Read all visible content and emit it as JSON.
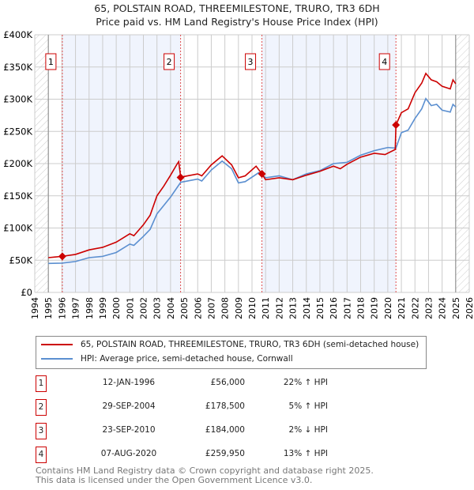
{
  "title": "65, POLSTAIN ROAD, THREEMILESTONE, TRURO, TR3 6DH",
  "subtitle": "Price paid vs. HM Land Registry's House Price Index (HPI)",
  "chart_data": {
    "type": "line",
    "xlim": [
      1994,
      2026
    ],
    "ylim": [
      0,
      400000
    ],
    "x_ticks": [
      "1994",
      "1995",
      "1996",
      "1997",
      "1998",
      "1999",
      "2000",
      "2001",
      "2002",
      "2003",
      "2004",
      "2005",
      "2006",
      "2007",
      "2008",
      "2009",
      "2010",
      "2011",
      "2012",
      "2013",
      "2014",
      "2015",
      "2016",
      "2017",
      "2018",
      "2019",
      "2020",
      "2021",
      "2022",
      "2023",
      "2024",
      "2025",
      "2026"
    ],
    "y_ticks": [
      {
        "v": 0,
        "label": "£0"
      },
      {
        "v": 50000,
        "label": "£50K"
      },
      {
        "v": 100000,
        "label": "£100K"
      },
      {
        "v": 150000,
        "label": "£150K"
      },
      {
        "v": 200000,
        "label": "£200K"
      },
      {
        "v": 250000,
        "label": "£250K"
      },
      {
        "v": 300000,
        "label": "£300K"
      },
      {
        "v": 350000,
        "label": "£350K"
      },
      {
        "v": 400000,
        "label": "£400K"
      }
    ],
    "data_range": [
      1995,
      2025
    ],
    "series": [
      {
        "name": "65, POLSTAIN ROAD, THREEMILESTONE, TRURO, TR3 6DH (semi-detached house)",
        "color": "#cc0000",
        "x": [
          1995,
          1995.5,
          1996,
          1997,
          1998,
          1999,
          2000,
          2001,
          2001.3,
          2002,
          2002.5,
          2003,
          2003.5,
          2004,
          2004.5,
          2004.6,
          2004.75,
          2005,
          2006,
          2006.3,
          2007,
          2007.8,
          2008.5,
          2009,
          2009.5,
          2010.3,
          2010.73,
          2011,
          2012,
          2013,
          2014,
          2015,
          2016,
          2016.5,
          2017,
          2018,
          2019,
          2019.8,
          2020.55,
          2020.6,
          2021,
          2021.5,
          2022,
          2022.5,
          2022.8,
          2023.2,
          2023.6,
          2024,
          2024.6,
          2024.8,
          2025
        ],
        "y": [
          54000,
          55000,
          56000,
          59000,
          66000,
          70000,
          78000,
          91000,
          88000,
          105000,
          120000,
          150000,
          165000,
          182000,
          200000,
          203000,
          178500,
          180000,
          184000,
          181000,
          198000,
          212000,
          198000,
          178000,
          181000,
          196000,
          184000,
          175000,
          178000,
          175000,
          182000,
          188000,
          196000,
          192000,
          199000,
          210000,
          216000,
          214000,
          222000,
          259950,
          279000,
          285000,
          310000,
          325000,
          340000,
          330000,
          327000,
          320000,
          316000,
          330000,
          324000
        ]
      },
      {
        "name": "HPI: Average price, semi-detached house, Cornwall",
        "color": "#5b8fd0",
        "x": [
          1995,
          1996,
          1997,
          1998,
          1999,
          2000,
          2001,
          2001.3,
          2002,
          2002.5,
          2003,
          2003.5,
          2004,
          2004.75,
          2005,
          2006,
          2006.3,
          2007,
          2007.8,
          2008.5,
          2009,
          2009.5,
          2010.5,
          2011,
          2012,
          2013,
          2014,
          2015,
          2016,
          2017,
          2018,
          2019,
          2020,
          2020.6,
          2021,
          2021.5,
          2022,
          2022.5,
          2022.8,
          2023.2,
          2023.6,
          2024,
          2024.6,
          2024.8,
          2025
        ],
        "y": [
          45000,
          45500,
          48000,
          54000,
          56000,
          62000,
          75000,
          73000,
          87000,
          98000,
          122000,
          135000,
          148000,
          171000,
          172000,
          176000,
          173000,
          190000,
          204000,
          192000,
          170000,
          172000,
          186000,
          178000,
          181000,
          175000,
          184000,
          189000,
          200000,
          202000,
          213000,
          220000,
          225000,
          224000,
          248000,
          252000,
          270000,
          285000,
          301000,
          290000,
          292000,
          283000,
          280000,
          292000,
          288000
        ]
      }
    ],
    "sales": [
      {
        "label": "1",
        "date": "12-JAN-1996",
        "x": 1996.03,
        "price": "£56,000",
        "value": 56000,
        "hpi": "22% ↑ HPI"
      },
      {
        "label": "2",
        "date": "29-SEP-2004",
        "x": 2004.74,
        "price": "£178,500",
        "value": 178500,
        "hpi": "5% ↑ HPI"
      },
      {
        "label": "3",
        "date": "23-SEP-2010",
        "x": 2010.73,
        "price": "£184,000",
        "value": 184000,
        "hpi": "2% ↓ HPI"
      },
      {
        "label": "4",
        "date": "07-AUG-2020",
        "x": 2020.6,
        "price": "£259,950",
        "value": 259950,
        "hpi": "13% ↑ HPI"
      }
    ]
  },
  "footer": [
    "Contains HM Land Registry data © Crown copyright and database right 2025.",
    "This data is licensed under the Open Government Licence v3.0."
  ]
}
